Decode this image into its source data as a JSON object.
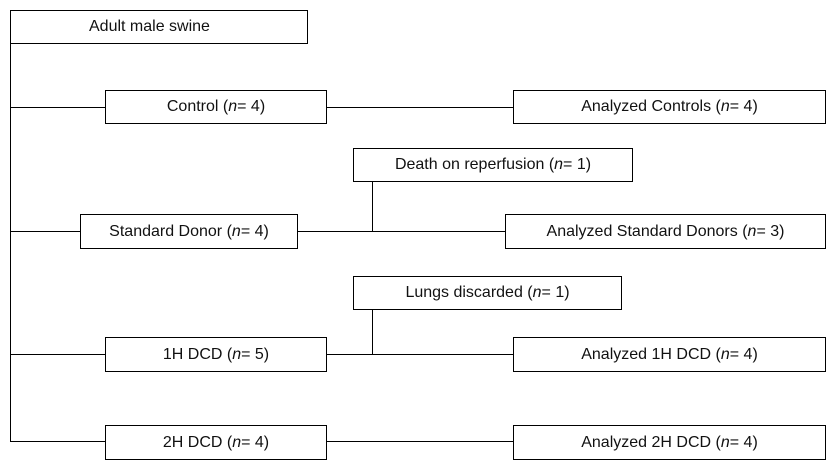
{
  "nodes": [
    {
      "label": [
        "Adult male swine"
      ]
    },
    {
      "label": [
        "Control (",
        "n",
        " = 4)"
      ]
    },
    {
      "label": [
        "Analyzed Controls (",
        "n",
        " = 4)"
      ]
    },
    {
      "label": [
        "Death on reperfusion (",
        "n",
        " = 1)"
      ]
    },
    {
      "label": [
        "Standard Donor (",
        "n",
        " = 4)"
      ]
    },
    {
      "label": [
        "Analyzed Standard Donors (",
        "n",
        " = 3)"
      ]
    },
    {
      "label": [
        "Lungs discarded (",
        "n",
        " = 1)"
      ]
    },
    {
      "label": [
        "1H DCD (",
        "n",
        " = 5)"
      ]
    },
    {
      "label": [
        "Analyzed 1H DCD (",
        "n",
        " = 4)"
      ]
    },
    {
      "label": [
        "2H DCD (",
        "n",
        " = 4)"
      ]
    },
    {
      "label": [
        "Analyzed 2H DCD (",
        "n",
        " = 4)"
      ]
    }
  ]
}
